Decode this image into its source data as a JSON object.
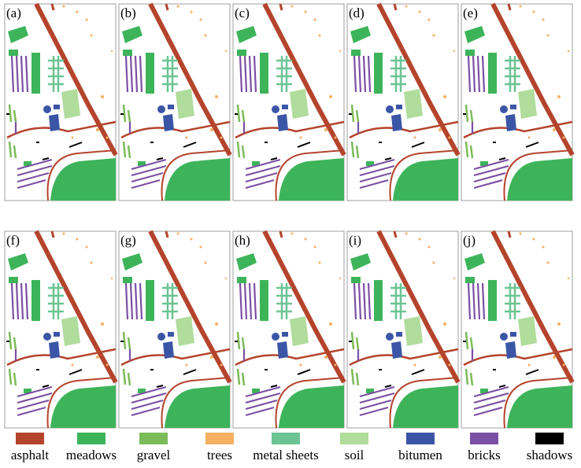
{
  "panels": [
    "(a)",
    "(b)",
    "(c)",
    "(d)",
    "(e)",
    "(f)",
    "(g)",
    "(h)",
    "(i)",
    "(j)"
  ],
  "legend": [
    {
      "name": "asphalt",
      "color": "#b4442c"
    },
    {
      "name": "meadows",
      "color": "#3db45a"
    },
    {
      "name": "gravel",
      "color": "#7cbb5a"
    },
    {
      "name": "trees",
      "color": "#f5b062"
    },
    {
      "name": "metal sheets",
      "color": "#6cc494"
    },
    {
      "name": "soil",
      "color": "#b0dc9c"
    },
    {
      "name": "bitumen",
      "color": "#3b55a6"
    },
    {
      "name": "bricks",
      "color": "#7b50a4"
    },
    {
      "name": "shadows",
      "color": "#000000"
    }
  ]
}
